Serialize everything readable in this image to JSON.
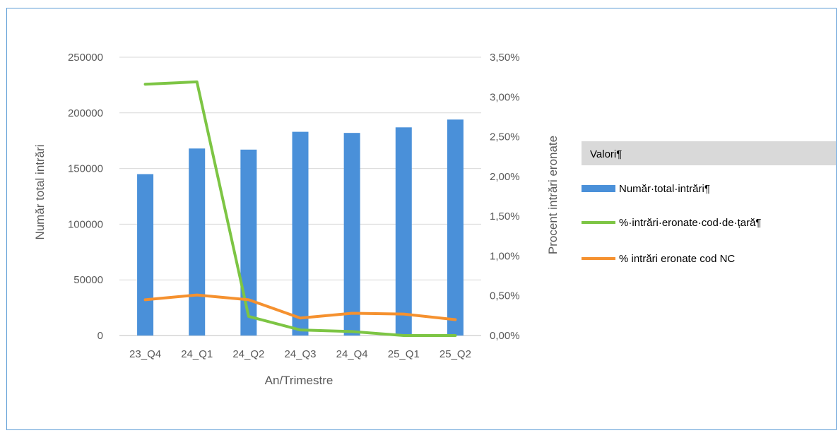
{
  "chart_data": {
    "type": "bar+line",
    "categories": [
      "23_Q4",
      "24_Q1",
      "24_Q2",
      "24_Q3",
      "24_Q4",
      "25_Q1",
      "25_Q2"
    ],
    "xlabel": "An/Trimestre",
    "ylabel": "Număr total intrări",
    "y2label": "Procent intrări eronate",
    "ylim": [
      0,
      250000
    ],
    "y2lim": [
      0,
      0.035
    ],
    "yticks": [
      "0",
      "50000",
      "100000",
      "150000",
      "200000",
      "250000"
    ],
    "y2ticks": [
      "0,00%",
      "0,50%",
      "1,00%",
      "1,50%",
      "2,00%",
      "2,50%",
      "3,00%",
      "3,50%"
    ],
    "grid": true,
    "series": [
      {
        "name": "Număr·total·intrări¶",
        "kind": "bar",
        "axis": "left",
        "color": "#4a90d9",
        "values": [
          145000,
          168000,
          167000,
          183000,
          182000,
          187000,
          194000
        ]
      },
      {
        "name": "%·intrări·eronate·cod·de·țară¶",
        "kind": "line",
        "axis": "right",
        "color": "#7dc544",
        "values": [
          0.0316,
          0.0319,
          0.0024,
          0.0007,
          0.0005,
          0.0,
          0.0
        ]
      },
      {
        "name": "% intrări eronate cod NC",
        "kind": "line",
        "axis": "right",
        "color": "#f5912f",
        "values": [
          0.0045,
          0.0051,
          0.0045,
          0.0022,
          0.0028,
          0.0027,
          0.002
        ]
      }
    ],
    "legend": {
      "title": "Valori¶",
      "position": "right"
    }
  }
}
